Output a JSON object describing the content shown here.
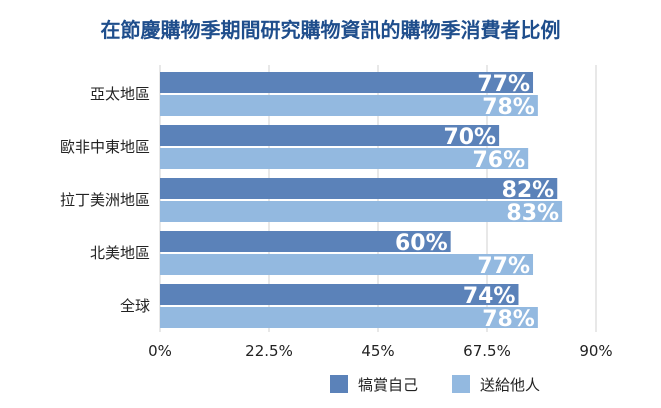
{
  "colors": {
    "title": "#1f4e8c",
    "series_self": "#5b82b9",
    "series_gift": "#93b9e0",
    "grid": "#d0d0d0",
    "axis_text": "#222222",
    "data_label": "#ffffff"
  },
  "chart_data": {
    "type": "bar",
    "orientation": "horizontal",
    "title": "在節慶購物季期間研究購物資訊的購物季消費者比例",
    "categories": [
      "亞太地區",
      "歐非中東地區",
      "拉丁美洲地區",
      "北美地區",
      "全球"
    ],
    "series": [
      {
        "name": "犒賞自己",
        "values": [
          77,
          70,
          82,
          60,
          74
        ],
        "labels": [
          "77%",
          "70%",
          "82%",
          "60%",
          "74%"
        ]
      },
      {
        "name": "送給他人",
        "values": [
          78,
          76,
          83,
          77,
          78
        ],
        "labels": [
          "78%",
          "76%",
          "83%",
          "77%",
          "78%"
        ]
      }
    ],
    "xlim": [
      0,
      90
    ],
    "xticks": [
      0,
      22.5,
      45,
      67.5,
      90
    ],
    "xtick_labels": [
      "0%",
      "22.5%",
      "45%",
      "67.5%",
      "90%"
    ],
    "grid": true,
    "legend_position": "bottom"
  }
}
